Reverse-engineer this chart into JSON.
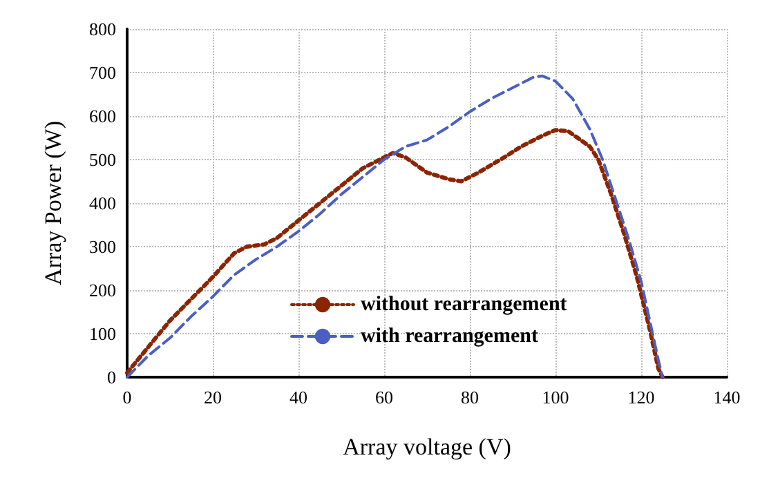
{
  "chart_data": {
    "type": "line",
    "xlabel": "Array voltage (V)",
    "ylabel": "Array Power (W)",
    "xlim": [
      0,
      140
    ],
    "xticks": [
      0,
      20,
      40,
      60,
      80,
      100,
      120,
      140
    ],
    "ylim": [
      0,
      800
    ],
    "yticks": [
      0,
      100,
      200,
      300,
      400,
      500,
      600,
      700,
      800
    ],
    "grid": true,
    "legend": "bottom",
    "marker": "none",
    "series": [
      {
        "name": "without rearrangement",
        "color": "#8b2500",
        "line_style": "dotted",
        "x": [
          0,
          5,
          10,
          15,
          20,
          25,
          28,
          32,
          35,
          40,
          45,
          50,
          55,
          60,
          62,
          65,
          70,
          75,
          78,
          82,
          88,
          92,
          97,
          100,
          103,
          108,
          110,
          113,
          116,
          119,
          122,
          124,
          125
        ],
        "values": [
          10,
          70,
          130,
          180,
          230,
          285,
          300,
          305,
          320,
          360,
          400,
          440,
          480,
          505,
          515,
          505,
          470,
          455,
          450,
          470,
          505,
          530,
          555,
          568,
          565,
          530,
          500,
          420,
          330,
          230,
          110,
          20,
          0
        ]
      },
      {
        "name": "with rearrangement",
        "color": "#4a5fc1",
        "line_style": "dashed",
        "x": [
          0,
          5,
          10,
          15,
          20,
          25,
          30,
          35,
          40,
          45,
          50,
          55,
          60,
          65,
          70,
          75,
          80,
          85,
          90,
          95,
          97,
          100,
          104,
          108,
          111,
          114,
          117,
          120,
          122,
          124,
          125
        ],
        "values": [
          0,
          50,
          90,
          140,
          185,
          235,
          270,
          300,
          335,
          375,
          420,
          460,
          500,
          530,
          545,
          575,
          610,
          640,
          665,
          690,
          692,
          680,
          640,
          570,
          500,
          410,
          320,
          220,
          130,
          40,
          0
        ]
      }
    ]
  }
}
